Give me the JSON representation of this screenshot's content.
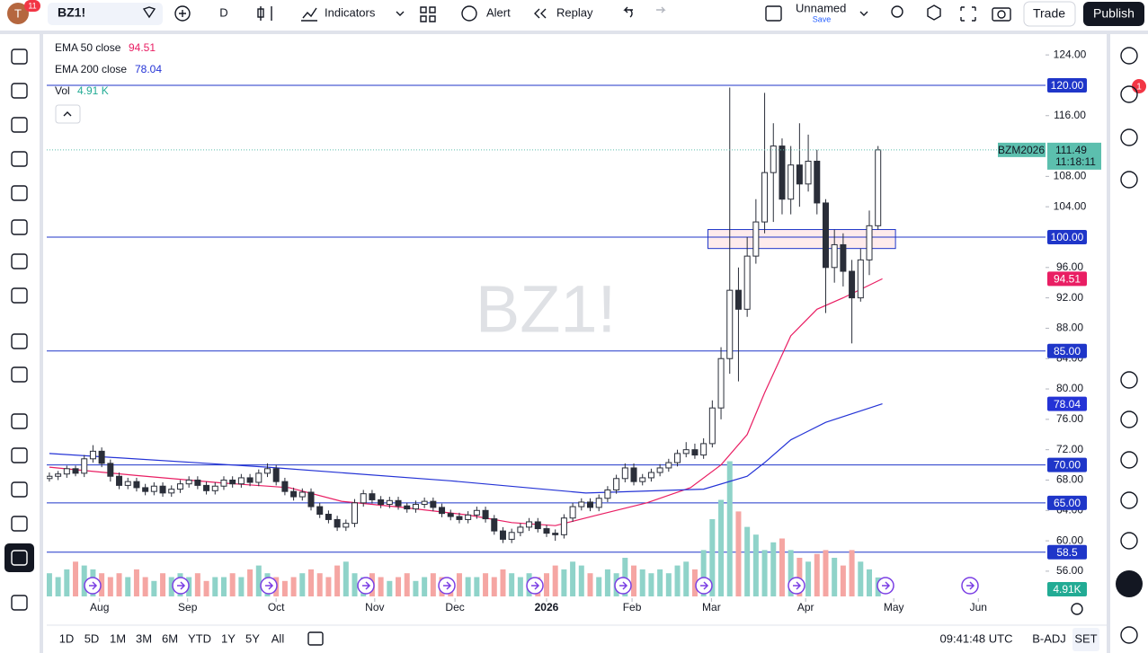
{
  "toolbar": {
    "avatar": "T",
    "avatar_badge": "11",
    "symbol": "BZ1!",
    "interval": "D",
    "indicators": "Indicators",
    "alert": "Alert",
    "replay": "Replay",
    "layout_name": "Unnamed",
    "save": "Save",
    "trade": "Trade",
    "publish": "Publish"
  },
  "legend": {
    "ema50_label": "EMA 50 close",
    "ema200_label": "EMA 200 close",
    "vol_label": "Vol",
    "vol_value": "4.91 K"
  },
  "right_panel": {
    "alert_badge": "1"
  },
  "bottom_bar": {
    "ranges": [
      "1D",
      "5D",
      "1M",
      "3M",
      "6M",
      "YTD",
      "1Y",
      "5Y",
      "All"
    ],
    "clock": "09:41:48 UTC",
    "adjust": "B-ADJ",
    "session": "SET"
  },
  "chart_data": {
    "type": "candlestick",
    "watermark": "BZ1!",
    "symbol_badge": "BZM2026",
    "countdown": "11:18:11",
    "up_color": "#ffffff",
    "down_color": "#2a2e39",
    "wick_color": "#2a2e39",
    "vol_up_color": "#8fd3c9",
    "vol_down_color": "#f5a6a3",
    "xlim": [
      -0.6,
      228.4
    ],
    "ylim": [
      49.6,
      126.5
    ],
    "xticks": [
      {
        "value": 11.5,
        "label": "Aug"
      },
      {
        "value": 31.7,
        "label": "Sep"
      },
      {
        "value": 52,
        "label": "Oct"
      },
      {
        "value": 74.6,
        "label": "Nov"
      },
      {
        "value": 93,
        "label": "Dec"
      },
      {
        "value": 114,
        "label": "2026"
      },
      {
        "value": 133.6,
        "label": "Feb"
      },
      {
        "value": 151.8,
        "label": "Mar"
      },
      {
        "value": 173.4,
        "label": "Apr"
      },
      {
        "value": 193.6,
        "label": "May"
      },
      {
        "value": 213,
        "label": "Jun"
      }
    ],
    "yticks": [
      {
        "value": 124,
        "label": "124.00"
      },
      {
        "value": 116,
        "label": "116.00"
      },
      {
        "value": 108,
        "label": "108.00"
      },
      {
        "value": 104,
        "label": "104.00"
      },
      {
        "value": 96,
        "label": "96.00"
      },
      {
        "value": 92,
        "label": "92.00"
      },
      {
        "value": 88,
        "label": "88.00"
      },
      {
        "value": 84,
        "label": "84.00"
      },
      {
        "value": 80,
        "label": "80.00"
      },
      {
        "value": 76,
        "label": "76.00"
      },
      {
        "value": 72,
        "label": "72.00"
      },
      {
        "value": 68,
        "label": "68.00"
      },
      {
        "value": 64,
        "label": "64.00"
      },
      {
        "value": 60,
        "label": "60.00"
      },
      {
        "value": 56,
        "label": "56.00"
      }
    ],
    "x": [
      0,
      2,
      4,
      6,
      8,
      10,
      12,
      14,
      16,
      18,
      20,
      22,
      24,
      26,
      28,
      30,
      32,
      34,
      36,
      38,
      40,
      42,
      44,
      46,
      48,
      50,
      52,
      54,
      56,
      58,
      60,
      62,
      64,
      66,
      68,
      70,
      72,
      74,
      76,
      78,
      80,
      82,
      84,
      86,
      88,
      90,
      92,
      94,
      96,
      98,
      100,
      102,
      104,
      106,
      108,
      110,
      112,
      114,
      116,
      118,
      120,
      122,
      124,
      126,
      128,
      130,
      132,
      134,
      136,
      138,
      140,
      142,
      144,
      146,
      148,
      150,
      152,
      154,
      156,
      158,
      160,
      162,
      164,
      166,
      168,
      170,
      172,
      174,
      176,
      178,
      180,
      182,
      184,
      186,
      188,
      190
    ],
    "open": [
      68.2,
      68.5,
      68.8,
      69.5,
      68.9,
      70.8,
      71.8,
      70.2,
      68.5,
      67.3,
      67.8,
      67.0,
      66.5,
      67.2,
      66.3,
      66.8,
      67.5,
      68.0,
      67.3,
      66.6,
      67.2,
      68.0,
      67.5,
      68.3,
      67.7,
      68.9,
      69.5,
      67.8,
      66.5,
      65.8,
      66.4,
      64.5,
      63.5,
      62.8,
      61.8,
      62.3,
      65.0,
      66.2,
      65.4,
      64.8,
      65.3,
      64.6,
      64.2,
      64.8,
      65.2,
      64.4,
      63.6,
      63.2,
      62.8,
      63.4,
      64.0,
      62.9,
      61.3,
      60.2,
      61.1,
      61.8,
      62.5,
      61.6,
      61.0,
      60.8,
      63.0,
      64.5,
      65.1,
      64.4,
      65.6,
      66.7,
      68.2,
      69.6,
      67.8,
      68.3,
      69.0,
      69.6,
      70.3,
      71.5,
      72.0,
      71.3,
      72.8,
      77.5,
      84.0,
      93.0,
      90.5,
      97.5,
      102.0,
      108.5,
      112.0,
      105.0,
      109.5,
      107.0,
      110.0,
      104.5,
      96.0,
      99.0,
      95.5,
      92.0,
      97.0,
      101.5
    ],
    "high": [
      69.0,
      69.2,
      69.9,
      69.9,
      71.3,
      72.6,
      72.3,
      70.7,
      69.0,
      68.3,
      68.3,
      67.5,
      67.7,
      67.7,
      67.3,
      68.0,
      68.5,
      68.5,
      67.8,
      67.7,
      68.5,
      68.5,
      68.8,
      68.8,
      69.4,
      70.2,
      70.0,
      68.3,
      67.0,
      66.9,
      66.9,
      65.0,
      64.0,
      63.3,
      62.8,
      65.5,
      66.7,
      66.7,
      65.9,
      65.8,
      65.8,
      65.0,
      65.3,
      65.7,
      65.7,
      64.9,
      64.1,
      63.7,
      63.9,
      64.5,
      64.5,
      63.4,
      61.8,
      61.6,
      62.3,
      63.0,
      63.0,
      62.1,
      61.5,
      63.5,
      65.0,
      65.6,
      65.6,
      66.1,
      67.2,
      68.7,
      70.2,
      70.2,
      68.8,
      69.5,
      70.1,
      70.8,
      72.0,
      73.0,
      72.8,
      73.5,
      78.5,
      85.5,
      119.7,
      96.0,
      100.0,
      105.0,
      119.0,
      115.0,
      113.0,
      112.0,
      115.0,
      113.5,
      111.5,
      105.0,
      101.0,
      100.5,
      97.0,
      98.5,
      103.5,
      112.0
    ],
    "low": [
      67.8,
      68.0,
      68.3,
      68.5,
      68.4,
      70.3,
      69.7,
      67.8,
      66.8,
      66.8,
      66.5,
      66.0,
      66.0,
      65.8,
      65.8,
      66.3,
      67.0,
      66.8,
      66.1,
      66.1,
      66.7,
      67.0,
      67.0,
      67.2,
      67.2,
      68.4,
      67.3,
      66.0,
      65.3,
      65.3,
      64.0,
      63.0,
      62.3,
      61.3,
      61.3,
      61.8,
      64.5,
      64.9,
      64.3,
      64.3,
      64.1,
      63.7,
      63.7,
      64.3,
      63.9,
      63.1,
      62.7,
      62.3,
      62.3,
      62.9,
      62.4,
      60.8,
      59.7,
      59.7,
      60.6,
      61.3,
      61.1,
      60.5,
      60.0,
      60.3,
      62.5,
      64.0,
      63.9,
      63.9,
      65.1,
      66.2,
      67.7,
      67.3,
      67.3,
      67.8,
      68.5,
      69.1,
      69.8,
      71.0,
      70.8,
      70.8,
      72.3,
      76.0,
      82.0,
      81.0,
      89.5,
      96.5,
      100.5,
      102.0,
      103.0,
      103.0,
      104.0,
      106.0,
      103.0,
      90.0,
      94.0,
      93.5,
      86.0,
      91.5,
      95.0,
      101.0
    ],
    "close": [
      68.5,
      68.8,
      69.5,
      68.9,
      70.8,
      71.8,
      70.2,
      68.5,
      67.3,
      67.8,
      67.0,
      66.5,
      67.2,
      66.3,
      66.8,
      67.5,
      68.0,
      67.3,
      66.6,
      67.2,
      68.0,
      67.5,
      68.3,
      67.7,
      68.9,
      69.5,
      67.8,
      66.5,
      65.8,
      66.4,
      64.5,
      63.5,
      62.8,
      61.8,
      62.3,
      65.0,
      66.2,
      65.4,
      64.8,
      65.3,
      64.6,
      64.2,
      64.8,
      65.2,
      64.4,
      63.6,
      63.2,
      62.8,
      63.4,
      64.0,
      62.9,
      61.3,
      60.2,
      61.1,
      61.8,
      62.5,
      61.6,
      61.0,
      60.8,
      63.0,
      64.5,
      65.1,
      64.4,
      65.6,
      66.7,
      68.2,
      69.6,
      67.8,
      68.3,
      69.0,
      69.6,
      70.3,
      71.5,
      72.0,
      71.3,
      72.8,
      77.5,
      84.0,
      93.0,
      90.5,
      97.5,
      102.0,
      108.5,
      112.0,
      105.0,
      109.5,
      107.0,
      110.0,
      104.5,
      96.0,
      99.0,
      95.5,
      92.0,
      97.0,
      101.5,
      111.49
    ],
    "volume": [
      6,
      5,
      7,
      9,
      8,
      7,
      6,
      5,
      6,
      5,
      7,
      5,
      4,
      6,
      5,
      6,
      5,
      6,
      4,
      5,
      5,
      6,
      5,
      7,
      8,
      6,
      5,
      4,
      5,
      6,
      7,
      6,
      5,
      8,
      9,
      6,
      5,
      6,
      5,
      4,
      5,
      6,
      4,
      5,
      6,
      5,
      4,
      6,
      5,
      5,
      6,
      5,
      7,
      6,
      5,
      6,
      5,
      6,
      8,
      7,
      9,
      8,
      6,
      5,
      7,
      6,
      10,
      8,
      7,
      6,
      7,
      6,
      8,
      9,
      7,
      12,
      20,
      25,
      35,
      22,
      18,
      16,
      12,
      14,
      15,
      12,
      10,
      9,
      11,
      12,
      10,
      8,
      12,
      9,
      7,
      4.91
    ],
    "volume_badge": "4.91K",
    "lines": [
      {
        "name": "EMA 50 close",
        "color": "#e91e63",
        "x": [
          0,
          20,
          40,
          55,
          67,
          81,
          96,
          106,
          116,
          125,
          137,
          147,
          154,
          160,
          164,
          170,
          176,
          182,
          191
        ],
        "values": [
          69.7,
          68.6,
          67.6,
          67.0,
          65.2,
          64.4,
          63.4,
          62.4,
          62.0,
          63.3,
          65.0,
          67.0,
          70.0,
          74.0,
          79.5,
          87.0,
          90.5,
          92.0,
          94.51
        ]
      },
      {
        "name": "EMA 200 close",
        "color": "#2433d6",
        "x": [
          0,
          50,
          92,
          123,
          150,
          160,
          164,
          170,
          178,
          191
        ],
        "values": [
          71.5,
          69.7,
          67.9,
          66.3,
          66.8,
          68.5,
          70.3,
          73.3,
          75.6,
          78.04
        ]
      }
    ],
    "levels": [
      {
        "value": 120,
        "label": "120.00"
      },
      {
        "value": 100,
        "label": "100.00"
      },
      {
        "value": 85,
        "label": "85.00"
      },
      {
        "value": 70,
        "label": "70.00"
      },
      {
        "value": 65,
        "label": "65.00"
      },
      {
        "value": 58.5,
        "label": "58.5"
      }
    ],
    "level_color": "#1f36c9",
    "zone": {
      "x": [
        151,
        194
      ],
      "values": [
        98.5,
        101
      ]
    }
  }
}
